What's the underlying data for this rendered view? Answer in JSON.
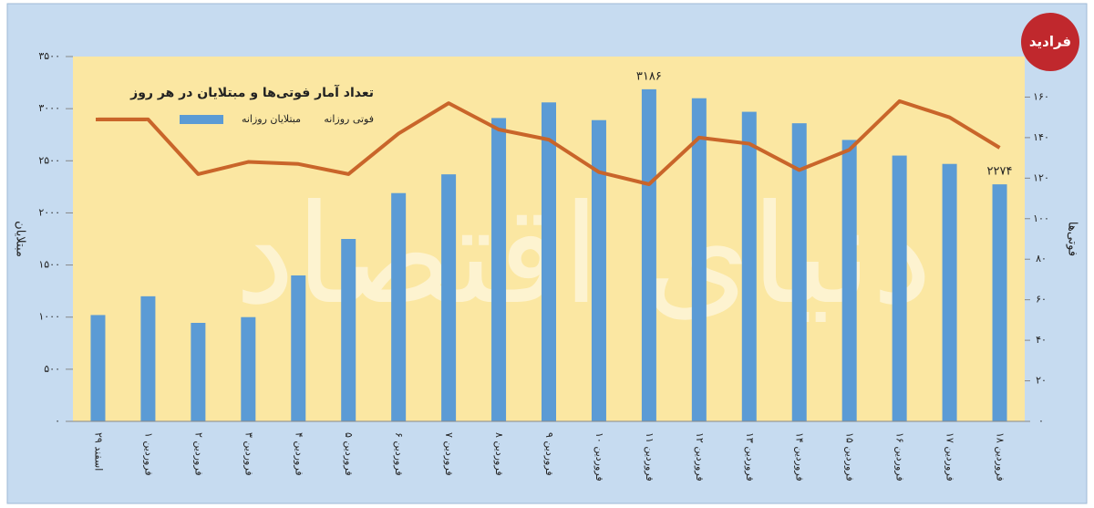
{
  "chart_data": {
    "type": "bar_line",
    "title": "تعداد آمار فوتی‌ها و مبتلایان در هر روز",
    "ylabel": "مبتلایان",
    "y2label": "فوتی‌ها",
    "logo": "فرادید",
    "watermark": "دنیای اقتصاد",
    "categories": [
      "۲۹ اسفند",
      "۱ فروردین",
      "۲ فروردین",
      "۳ فروردین",
      "۴ فروردین",
      "۵ فروردین",
      "۶ فروردین",
      "۷ فروردین",
      "۸ فروردین",
      "۹ فروردین",
      "۱۰ فروردین",
      "۱۱ فروردین",
      "۱۲ فروردین",
      "۱۳ فروردین",
      "۱۴ فروردین",
      "۱۵ فروردین",
      "۱۶ فروردین",
      "۱۷ فروردین",
      "۱۸ فروردین"
    ],
    "series": [
      {
        "name": "مبتلایان روزانه",
        "color": "#5b9bd5",
        "kind": "bar",
        "values": [
          1020,
          1200,
          945,
          1000,
          1400,
          1750,
          2190,
          2370,
          2910,
          3060,
          2890,
          3186,
          3100,
          2970,
          2860,
          2700,
          2550,
          2470,
          2274
        ],
        "value_labels": [
          null,
          null,
          null,
          null,
          null,
          null,
          null,
          null,
          null,
          null,
          null,
          "۳۱۸۶",
          null,
          null,
          null,
          null,
          null,
          null,
          "۲۲۷۴"
        ]
      },
      {
        "name": "فوتی روزانه",
        "color": "#c9652a",
        "kind": "line",
        "axis": "y2",
        "values": [
          149,
          149,
          122,
          128,
          127,
          122,
          142,
          157,
          144,
          139,
          123,
          117,
          140,
          137,
          124,
          134,
          158,
          150,
          135
        ]
      }
    ],
    "ylim": [
      0,
      3500
    ],
    "yticks": [
      {
        "value": 0,
        "label": "۰"
      },
      {
        "value": 500,
        "label": "۵۰۰"
      },
      {
        "value": 1000,
        "label": "۱۰۰۰"
      },
      {
        "value": 1500,
        "label": "۱۵۰۰"
      },
      {
        "value": 2000,
        "label": "۲۰۰۰"
      },
      {
        "value": 2500,
        "label": "۲۵۰۰"
      },
      {
        "value": 3000,
        "label": "۳۰۰۰"
      },
      {
        "value": 3500,
        "label": "۳۵۰۰"
      }
    ],
    "y2lim": [
      0,
      180
    ],
    "y2ticks": [
      {
        "value": 0,
        "label": "۰"
      },
      {
        "value": 20,
        "label": "۲۰"
      },
      {
        "value": 40,
        "label": "۴۰"
      },
      {
        "value": 60,
        "label": "۶۰"
      },
      {
        "value": 80,
        "label": "۸۰"
      },
      {
        "value": 100,
        "label": "۱۰۰"
      },
      {
        "value": 120,
        "label": "۱۲۰"
      },
      {
        "value": 140,
        "label": "۱۴۰"
      },
      {
        "value": 160,
        "label": "۱۶۰"
      }
    ],
    "grid": false
  }
}
